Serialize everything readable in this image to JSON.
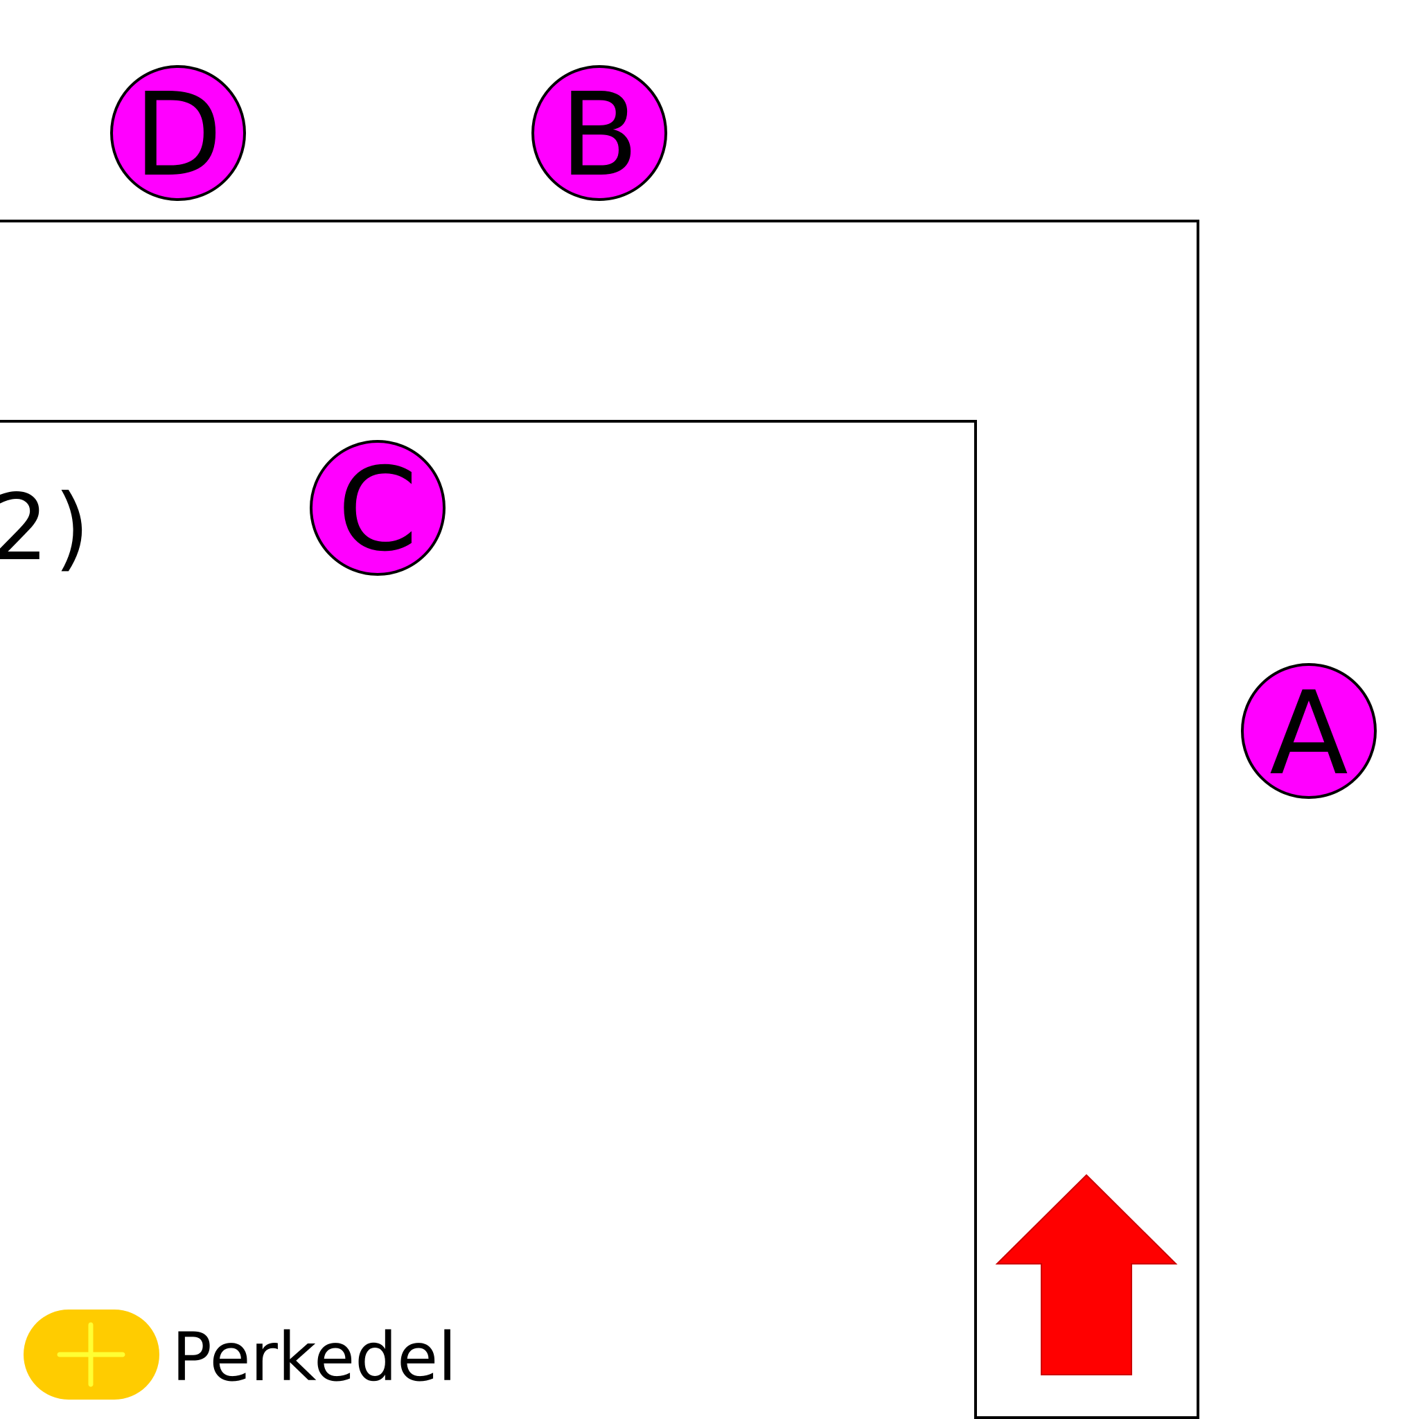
{
  "markers": [
    {
      "id": "marker-d",
      "label": "D",
      "color": "#ff00ff"
    },
    {
      "id": "marker-b",
      "label": "B",
      "color": "#ff00ff"
    },
    {
      "id": "marker-c",
      "label": "C",
      "color": "#ff00ff"
    },
    {
      "id": "marker-a",
      "label": "A",
      "color": "#ff00ff"
    }
  ],
  "partial_label": "2)",
  "legend": {
    "label": "Perkedel",
    "icon": "plus-pill-icon",
    "pill_color": "#ffcc00",
    "plus_color": "#ffff33"
  },
  "arrow": {
    "direction": "up",
    "color": "#ff0000",
    "icon": "arrow-up-icon"
  }
}
